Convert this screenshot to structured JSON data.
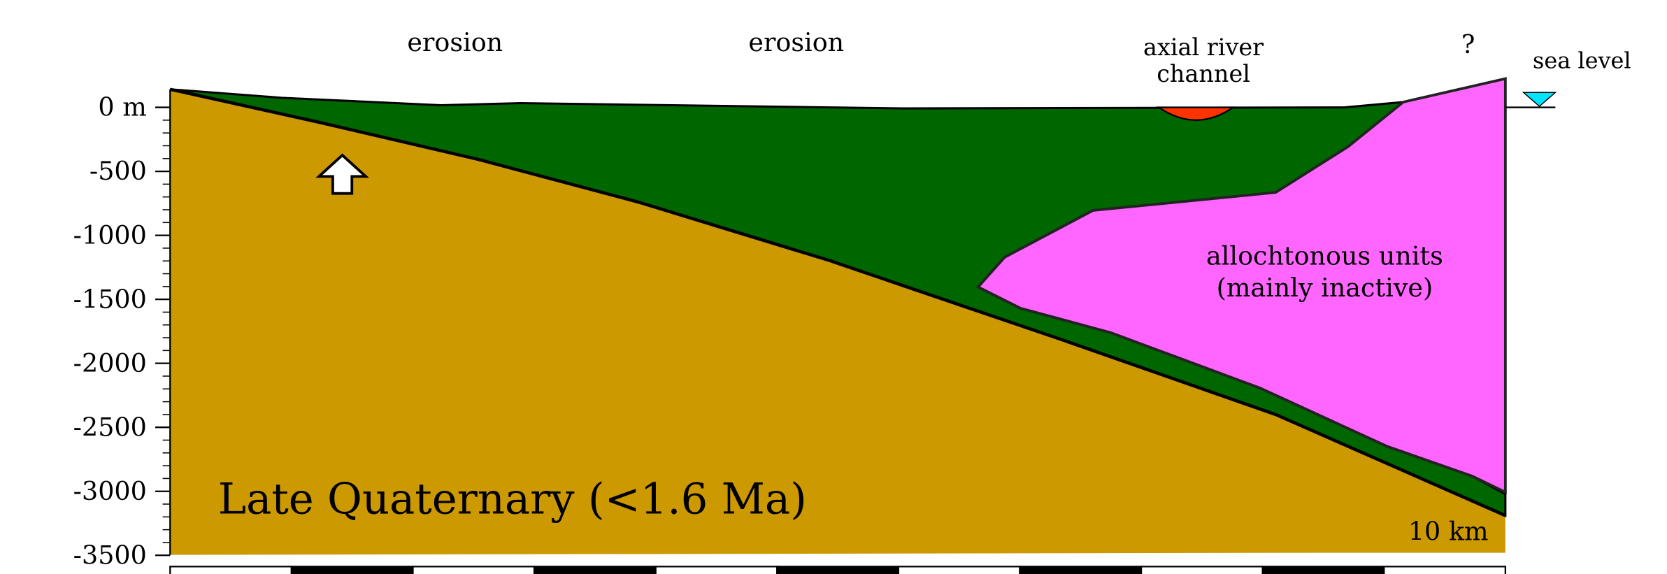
{
  "axis": {
    "ticks": [
      "0 m",
      "-500",
      "-1000",
      "-1500",
      "-2000",
      "-2500",
      "-3000",
      "-3500"
    ]
  },
  "annotations": {
    "erosion_left": "erosion",
    "erosion_middle": "erosion",
    "channel": [
      "axial river",
      "channel"
    ],
    "question": "?",
    "sea_level": "sea level",
    "allochthonous": [
      "allochtonous units",
      "(mainly inactive)"
    ],
    "period": "Late Quaternary (<1.6 Ma)",
    "scale": "10 km"
  }
}
